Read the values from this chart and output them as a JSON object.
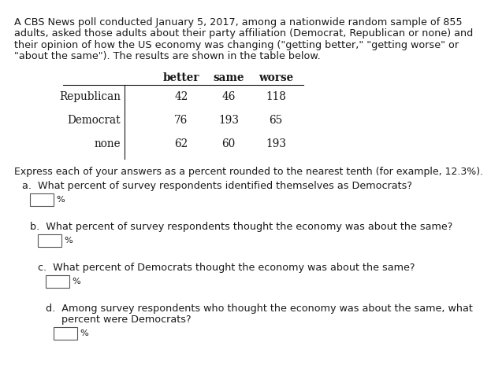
{
  "title_lines": [
    "A CBS News poll conducted January 5, 2017, among a nationwide random sample of 855",
    "adults, asked those adults about their party affiliation (Democrat, Republican or none) and",
    "their opinion of how the US economy was changing (\"getting better,\" \"getting worse\" or",
    "\"about the same\"). The results are shown in the table below."
  ],
  "col_headers": [
    "better",
    "same",
    "worse"
  ],
  "row_labels": [
    "Republican",
    "Democrat",
    "none"
  ],
  "table_data": [
    [
      42,
      46,
      118
    ],
    [
      76,
      193,
      65
    ],
    [
      62,
      60,
      193
    ]
  ],
  "instruction": "Express each of your answers as a percent rounded to the nearest tenth (for example, 12.3%).",
  "question_a": "a.  What percent of survey respondents identified themselves as Democrats?",
  "question_b": "b.  What percent of survey respondents thought the economy was about the same?",
  "question_c": "c.  What percent of Democrats thought the economy was about the same?",
  "question_d1": "d.  Among survey respondents who thought the economy was about the same, what",
  "question_d2": "     percent were Democrats?",
  "bg_color": "#ffffff",
  "text_color": "#1a1a1a",
  "box_color": "#ffffff",
  "box_border": "#555555",
  "title_fontsize": 9.2,
  "table_fontsize": 9.8,
  "question_fontsize": 9.2,
  "instruction_fontsize": 9.0
}
